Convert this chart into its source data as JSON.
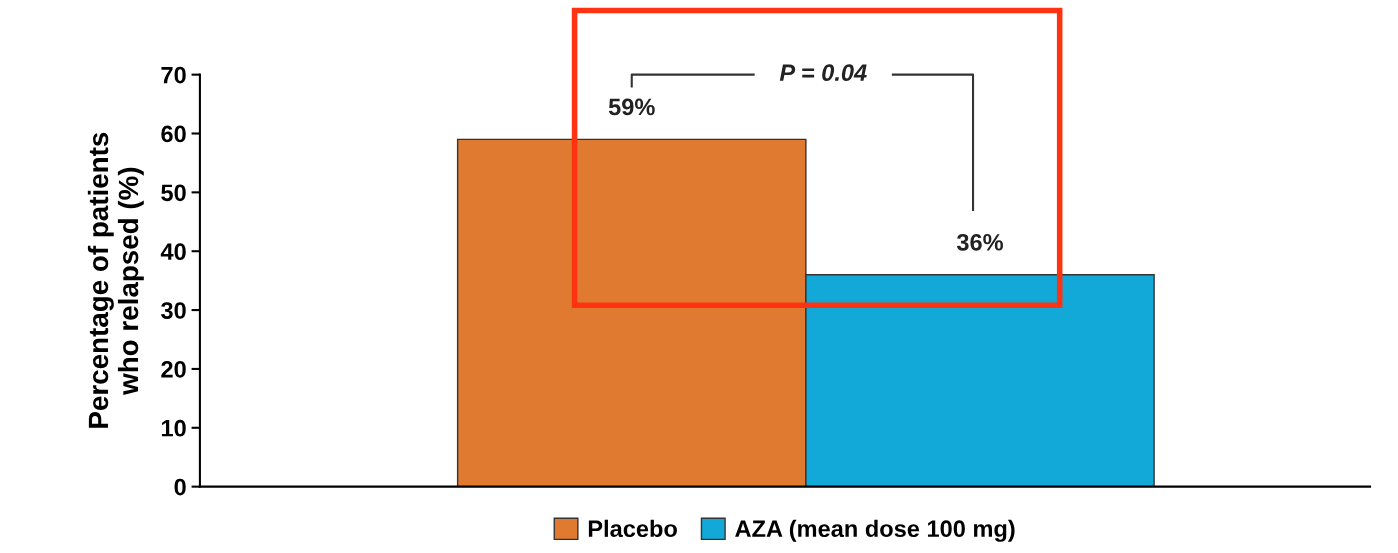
{
  "chart_data": {
    "type": "bar",
    "ylabel": "Percentage of patients\nwho relapsed (%)",
    "categories": [
      null,
      null
    ],
    "series": [
      {
        "name": "Placebo",
        "color": "#e07a30",
        "values": [
          59,
          null
        ],
        "value_labels": [
          "59%",
          null
        ]
      },
      {
        "name": "AZA (mean dose 100 mg)",
        "color": "#12a8d8",
        "values": [
          null,
          36
        ],
        "value_labels": [
          null,
          "36%"
        ]
      }
    ],
    "ylim": [
      0,
      70
    ],
    "yticks": [
      0,
      10,
      20,
      30,
      40,
      50,
      60,
      70
    ],
    "grid": false,
    "legend": "bottom",
    "annotations": [
      "P = 0.04"
    ]
  }
}
